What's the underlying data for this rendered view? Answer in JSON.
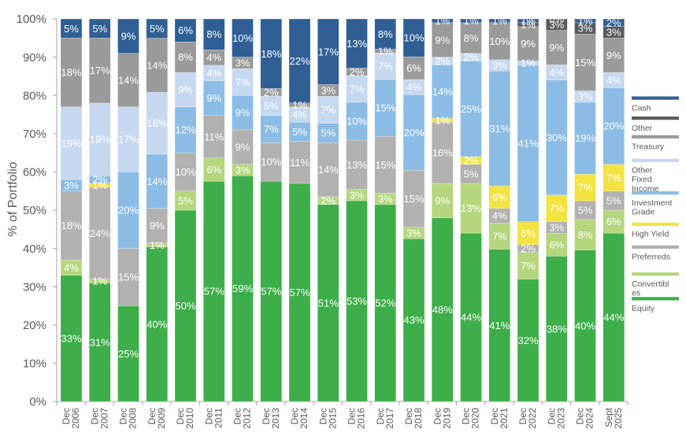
{
  "chart_data": {
    "type": "bar",
    "stacked": true,
    "title": "",
    "xlabel": "",
    "ylabel": "% of Portfolio",
    "ylim": [
      0,
      100
    ],
    "grid": false,
    "y_tick_labels": [
      "0%",
      "10%",
      "20%",
      "30%",
      "40%",
      "50%",
      "60%",
      "70%",
      "80%",
      "90%",
      "100%"
    ],
    "categories": [
      "Dec 2006",
      "Dec 2007",
      "Dec 2008",
      "Dec 2009",
      "Dec 2010",
      "Dec 2011",
      "Dec 2012",
      "Dec 2013",
      "Dec 2014",
      "Dec 2015",
      "Dec 2016",
      "Dec 2017",
      "Dec 2018",
      "Dec 2019",
      "Dec 2020",
      "Dec 2021",
      "Dec 2022",
      "Dec 2023",
      "Dec 2024",
      "Sept 2025"
    ],
    "x_tick_labels": [
      [
        "Dec",
        "2006"
      ],
      [
        "Dec",
        "2007"
      ],
      [
        "Dec",
        "2008"
      ],
      [
        "Dec",
        "2009"
      ],
      [
        "Dec",
        "2010"
      ],
      [
        "Dec",
        "2011"
      ],
      [
        "Dec",
        "2012"
      ],
      [
        "Dec",
        "2013"
      ],
      [
        "Dec",
        "2014"
      ],
      [
        "Dec",
        "2015"
      ],
      [
        "Dec",
        "2016"
      ],
      [
        "Dec",
        "2017"
      ],
      [
        "Dec",
        "2018"
      ],
      [
        "Dec",
        "2019"
      ],
      [
        "Dec",
        "2020"
      ],
      [
        "Dec",
        "2021"
      ],
      [
        "Dec",
        "2022"
      ],
      [
        "Dec",
        "2023"
      ],
      [
        "Dec",
        "2024"
      ],
      [
        "Sept",
        "2025"
      ]
    ],
    "series": [
      {
        "name": "Equity",
        "color": "#3DAE4A",
        "values": [
          33,
          31,
          25,
          40,
          50,
          57,
          59,
          57,
          57,
          51,
          53,
          52,
          43,
          48,
          44,
          41,
          32,
          38,
          40,
          44
        ],
        "labels": [
          "33%",
          "31%",
          "25%",
          "40%",
          "50%",
          "57%",
          "59%",
          "57%",
          "57%",
          "51%",
          "53%",
          "52%",
          "43%",
          "48%",
          "44%",
          "41%",
          "32%",
          "38%",
          "40%",
          "44%"
        ]
      },
      {
        "name": "Convertibles",
        "color": "#B5D67D",
        "values": [
          4,
          1,
          null,
          1,
          5,
          6,
          3,
          null,
          null,
          2,
          3,
          3,
          3,
          9,
          13,
          7,
          7,
          6,
          8,
          6
        ],
        "labels": [
          "4%",
          "1%",
          null,
          "1%",
          "5%",
          "6%",
          "3%",
          null,
          null,
          "2%",
          "3%",
          "3%",
          "3%",
          "9%",
          "13%",
          "7%",
          "7%",
          "6%",
          "8%",
          "6%"
        ]
      },
      {
        "name": "Preferreds",
        "color": "#B3B1AF",
        "values": [
          18,
          24,
          15,
          9,
          10,
          11,
          9,
          10,
          11,
          14,
          13,
          15,
          15,
          16,
          5,
          4,
          2,
          3,
          5,
          5
        ],
        "labels": [
          "18%",
          "24%",
          "15%",
          "9%",
          "10%",
          "11%",
          "9%",
          "10%",
          "11%",
          "14%",
          "13%",
          "15%",
          "15%",
          "16%",
          "5%",
          "4%",
          "2%",
          "3%",
          "5%",
          "5%"
        ]
      },
      {
        "name": "High Yield",
        "color": "#F2E340",
        "values": [
          null,
          1,
          null,
          null,
          null,
          null,
          null,
          null,
          null,
          null,
          null,
          null,
          null,
          1,
          2,
          6,
          6,
          7,
          7,
          7
        ],
        "labels": [
          null,
          "1%",
          null,
          null,
          null,
          null,
          null,
          null,
          null,
          null,
          null,
          null,
          null,
          "1%",
          "2%",
          "6%",
          "6%",
          "7%",
          "7%",
          "7%"
        ]
      },
      {
        "name": "Investment Grade",
        "color": "#8BBCE5",
        "values": [
          3,
          2,
          20,
          14,
          12,
          9,
          9,
          7,
          5,
          5,
          10,
          15,
          20,
          14,
          25,
          31,
          41,
          30,
          19,
          20
        ],
        "labels": [
          "3%",
          "2%",
          "20%",
          "14%",
          "12%",
          "9%",
          "9%",
          "7%",
          "5%",
          "5%",
          "10%",
          "15%",
          "20%",
          "14%",
          "25%",
          "31%",
          "41%",
          "30%",
          "19%",
          "20%"
        ]
      },
      {
        "name": "Other Fixed Income",
        "color": "#C6D8EF",
        "values": [
          19,
          19,
          17,
          16,
          9,
          4,
          7,
          5,
          4,
          7,
          7,
          7,
          4,
          2,
          2,
          3,
          1,
          4,
          3,
          4
        ],
        "labels": [
          "19%",
          "19%",
          "17%",
          "16%",
          "9%",
          "4%",
          "7%",
          "5%",
          "4%",
          "7%",
          "7%",
          "7%",
          "4%",
          "2%",
          "2%",
          "3%",
          "1%",
          "4%",
          "3%",
          "4%"
        ]
      },
      {
        "name": "Treasury",
        "color": "#9A9A9A",
        "values": [
          18,
          17,
          14,
          14,
          8,
          4,
          3,
          2,
          1,
          3,
          2,
          1,
          6,
          9,
          8,
          10,
          9,
          9,
          15,
          9
        ],
        "labels": [
          "18%",
          "17%",
          "14%",
          "14%",
          "8%",
          "4%",
          "3%",
          "2%",
          "1%",
          "3%",
          "2%",
          "1%",
          "6%",
          "9%",
          "8%",
          "10%",
          "9%",
          "9%",
          "15%",
          "9%"
        ]
      },
      {
        "name": "Other",
        "color": "#5A5B5E",
        "values": [
          null,
          null,
          null,
          null,
          null,
          null,
          null,
          null,
          null,
          null,
          null,
          null,
          null,
          null,
          null,
          null,
          1,
          3,
          3,
          3
        ],
        "labels": [
          null,
          null,
          null,
          null,
          null,
          null,
          null,
          null,
          null,
          null,
          null,
          null,
          null,
          null,
          null,
          null,
          "1%",
          "3%",
          "3%",
          "3%"
        ]
      },
      {
        "name": "Cash",
        "color": "#2F5F95",
        "values": [
          5,
          5,
          9,
          5,
          6,
          8,
          10,
          18,
          22,
          17,
          13,
          8,
          10,
          1,
          1,
          1,
          1,
          0,
          1,
          2
        ],
        "labels": [
          "5%",
          "5%",
          "9%",
          "5%",
          "6%",
          "8%",
          "10%",
          "18%",
          "22%",
          "17%",
          "13%",
          "8%",
          "10%",
          "1%",
          "1%",
          "1%",
          "1%",
          "0%",
          "1%",
          "2%"
        ]
      }
    ],
    "legend": {
      "position": "right",
      "entries": [
        {
          "series": "Cash",
          "lines": [
            "Cash"
          ]
        },
        {
          "series": "Other",
          "lines": [
            "Other"
          ]
        },
        {
          "series": "Treasury",
          "lines": [
            "Treasury"
          ]
        },
        {
          "series": "Other Fixed Income",
          "lines": [
            "Other",
            "Fixed",
            "Income"
          ]
        },
        {
          "series": "Investment Grade",
          "lines": [
            "Investment",
            "Grade"
          ]
        },
        {
          "series": "High Yield",
          "lines": [
            "High Yield"
          ]
        },
        {
          "series": "Preferreds",
          "lines": [
            "Preferreds"
          ]
        },
        {
          "series": "Convertibles",
          "lines": [
            "Convertibl",
            "es"
          ]
        },
        {
          "series": "Equity",
          "lines": [
            "Equity"
          ]
        }
      ]
    }
  }
}
